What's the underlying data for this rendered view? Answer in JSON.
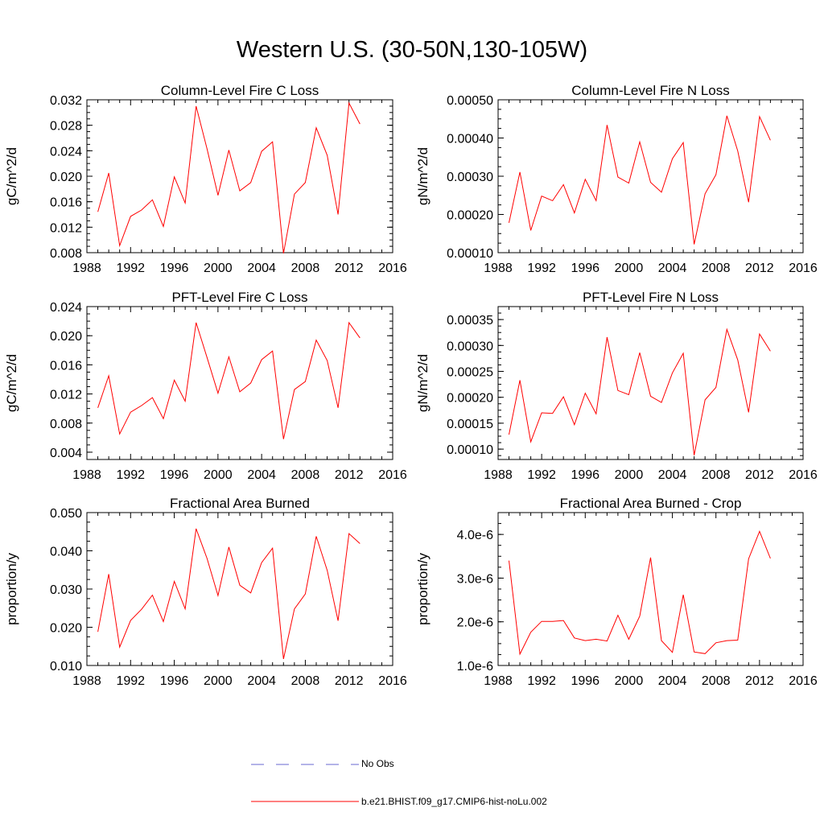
{
  "title": "Western U.S. (30-50N,130-105W)",
  "chart_data": [
    {
      "type": "line",
      "title": "Column-Level Fire C Loss",
      "ylabel": "gC/m^2/d",
      "xlim": [
        1988,
        2016
      ],
      "ylim": [
        0.008,
        0.032
      ],
      "x_ticks": [
        "1988",
        "1992",
        "1996",
        "2000",
        "2004",
        "2008",
        "2012",
        "2016"
      ],
      "y_ticks": [
        "0.008",
        "0.012",
        "0.016",
        "0.020",
        "0.024",
        "0.028",
        "0.032"
      ],
      "x": [
        1989,
        1990,
        1991,
        1992,
        1993,
        1994,
        1995,
        1996,
        1997,
        1998,
        1999,
        2000,
        2001,
        2002,
        2003,
        2004,
        2005,
        2006,
        2007,
        2008,
        2009,
        2010,
        2011,
        2012,
        2013
      ],
      "series": [
        {
          "name": "b.e21.BHIST.f09_g17.CMIP6-hist-noLu.002",
          "color": "#ff0000",
          "values": [
            0.0144,
            0.0205,
            0.0091,
            0.0137,
            0.0147,
            0.0163,
            0.0121,
            0.0199,
            0.0158,
            0.031,
            0.0243,
            0.017,
            0.0241,
            0.0177,
            0.019,
            0.0239,
            0.0254,
            0.0079,
            0.0172,
            0.019,
            0.0276,
            0.0233,
            0.014,
            0.0315,
            0.0282
          ]
        }
      ]
    },
    {
      "type": "line",
      "title": "Column-Level Fire N Loss",
      "ylabel": "gN/m^2/d",
      "xlim": [
        1988,
        2016
      ],
      "ylim": [
        0.0001,
        0.0005
      ],
      "x_ticks": [
        "1988",
        "1992",
        "1996",
        "2000",
        "2004",
        "2008",
        "2012",
        "2016"
      ],
      "y_ticks": [
        "0.00010",
        "0.00020",
        "0.00030",
        "0.00040",
        "0.00050"
      ],
      "x": [
        1989,
        1990,
        1991,
        1992,
        1993,
        1994,
        1995,
        1996,
        1997,
        1998,
        1999,
        2000,
        2001,
        2002,
        2003,
        2004,
        2005,
        2006,
        2007,
        2008,
        2009,
        2010,
        2011,
        2012,
        2013
      ],
      "series": [
        {
          "name": "b.e21.BHIST.f09_g17.CMIP6-hist-noLu.002",
          "color": "#ff0000",
          "values": [
            0.000178,
            0.000311,
            0.000158,
            0.000248,
            0.000236,
            0.000278,
            0.000204,
            0.000292,
            0.000236,
            0.000434,
            0.000298,
            0.000282,
            0.00039,
            0.000284,
            0.000258,
            0.000346,
            0.000388,
            0.000122,
            0.000254,
            0.000304,
            0.000458,
            0.000366,
            0.000232,
            0.000456,
            0.000394
          ]
        }
      ]
    },
    {
      "type": "line",
      "title": "PFT-Level Fire C Loss",
      "ylabel": "gC/m^2/d",
      "xlim": [
        1988,
        2016
      ],
      "ylim": [
        0.003,
        0.024
      ],
      "x_ticks": [
        "1988",
        "1992",
        "1996",
        "2000",
        "2004",
        "2008",
        "2012",
        "2016"
      ],
      "y_ticks": [
        "0.004",
        "0.008",
        "0.012",
        "0.016",
        "0.020",
        "0.024"
      ],
      "x": [
        1989,
        1990,
        1991,
        1992,
        1993,
        1994,
        1995,
        1996,
        1997,
        1998,
        1999,
        2000,
        2001,
        2002,
        2003,
        2004,
        2005,
        2006,
        2007,
        2008,
        2009,
        2010,
        2011,
        2012,
        2013
      ],
      "series": [
        {
          "name": "b.e21.BHIST.f09_g17.CMIP6-hist-noLu.002",
          "color": "#ff0000",
          "values": [
            0.0101,
            0.0145,
            0.0065,
            0.0095,
            0.0104,
            0.0115,
            0.0086,
            0.0139,
            0.011,
            0.0218,
            0.017,
            0.0121,
            0.0171,
            0.0123,
            0.0135,
            0.0167,
            0.0179,
            0.0058,
            0.0126,
            0.0137,
            0.0194,
            0.0166,
            0.0101,
            0.0218,
            0.0197
          ]
        }
      ]
    },
    {
      "type": "line",
      "title": "PFT-Level Fire N Loss",
      "ylabel": "gN/m^2/d",
      "xlim": [
        1988,
        2016
      ],
      "ylim": [
        8e-05,
        0.000375
      ],
      "x_ticks": [
        "1988",
        "1992",
        "1996",
        "2000",
        "2004",
        "2008",
        "2012",
        "2016"
      ],
      "y_ticks": [
        "0.00010",
        "0.00015",
        "0.00020",
        "0.00025",
        "0.00030",
        "0.00035"
      ],
      "x": [
        1989,
        1990,
        1991,
        1992,
        1993,
        1994,
        1995,
        1996,
        1997,
        1998,
        1999,
        2000,
        2001,
        2002,
        2003,
        2004,
        2005,
        2006,
        2007,
        2008,
        2009,
        2010,
        2011,
        2012,
        2013
      ],
      "series": [
        {
          "name": "b.e21.BHIST.f09_g17.CMIP6-hist-noLu.002",
          "color": "#ff0000",
          "values": [
            0.000128,
            0.000233,
            0.000114,
            0.00017,
            0.000169,
            0.000201,
            0.000147,
            0.000208,
            0.000168,
            0.000316,
            0.000213,
            0.000205,
            0.000286,
            0.000202,
            0.00019,
            0.000247,
            0.000285,
            8.8e-05,
            0.000195,
            0.000219,
            0.000331,
            0.000272,
            0.000171,
            0.000322,
            0.000289
          ]
        }
      ]
    },
    {
      "type": "line",
      "title": "Fractional Area Burned",
      "ylabel": "proportion/y",
      "xlim": [
        1988,
        2016
      ],
      "ylim": [
        0.01,
        0.05
      ],
      "x_ticks": [
        "1988",
        "1992",
        "1996",
        "2000",
        "2004",
        "2008",
        "2012",
        "2016"
      ],
      "y_ticks": [
        "0.010",
        "0.020",
        "0.030",
        "0.040",
        "0.050"
      ],
      "x": [
        1989,
        1990,
        1991,
        1992,
        1993,
        1994,
        1995,
        1996,
        1997,
        1998,
        1999,
        2000,
        2001,
        2002,
        2003,
        2004,
        2005,
        2006,
        2007,
        2008,
        2009,
        2010,
        2011,
        2012,
        2013
      ],
      "series": [
        {
          "name": "b.e21.BHIST.f09_g17.CMIP6-hist-noLu.002",
          "color": "#ff0000",
          "values": [
            0.0188,
            0.0339,
            0.0148,
            0.0218,
            0.0247,
            0.0284,
            0.0215,
            0.032,
            0.0248,
            0.0458,
            0.038,
            0.0283,
            0.041,
            0.031,
            0.029,
            0.0369,
            0.0407,
            0.0117,
            0.0248,
            0.0287,
            0.0438,
            0.0349,
            0.0217,
            0.0445,
            0.0419
          ]
        }
      ]
    },
    {
      "type": "line",
      "title": "Fractional Area Burned - Crop",
      "ylabel": "proportion/y",
      "xlim": [
        1988,
        2016
      ],
      "ylim": [
        1e-06,
        4.5e-06
      ],
      "x_ticks": [
        "1988",
        "1992",
        "1996",
        "2000",
        "2004",
        "2008",
        "2012",
        "2016"
      ],
      "y_ticks": [
        "1.0e-6",
        "2.0e-6",
        "3.0e-6",
        "4.0e-6"
      ],
      "x": [
        1989,
        1990,
        1991,
        1992,
        1993,
        1994,
        1995,
        1996,
        1997,
        1998,
        1999,
        2000,
        2001,
        2002,
        2003,
        2004,
        2005,
        2006,
        2007,
        2008,
        2009,
        2010,
        2011,
        2012,
        2013
      ],
      "series": [
        {
          "name": "b.e21.BHIST.f09_g17.CMIP6-hist-noLu.002",
          "color": "#ff0000",
          "values": [
            3.4e-06,
            1.26e-06,
            1.76e-06,
            2.01e-06,
            2.01e-06,
            2.03e-06,
            1.63e-06,
            1.57e-06,
            1.6e-06,
            1.56e-06,
            2.15e-06,
            1.6e-06,
            2.13e-06,
            3.47e-06,
            1.57e-06,
            1.3e-06,
            2.62e-06,
            1.31e-06,
            1.27e-06,
            1.52e-06,
            1.57e-06,
            1.58e-06,
            3.44e-06,
            4.07e-06,
            3.45e-06
          ]
        }
      ]
    }
  ],
  "legend": [
    {
      "label": "No Obs",
      "color": "#6a6ad0",
      "style": "dashed"
    },
    {
      "label": "b.e21.BHIST.f09_g17.CMIP6-hist-noLu.002",
      "color": "#ff0000",
      "style": "solid"
    }
  ]
}
